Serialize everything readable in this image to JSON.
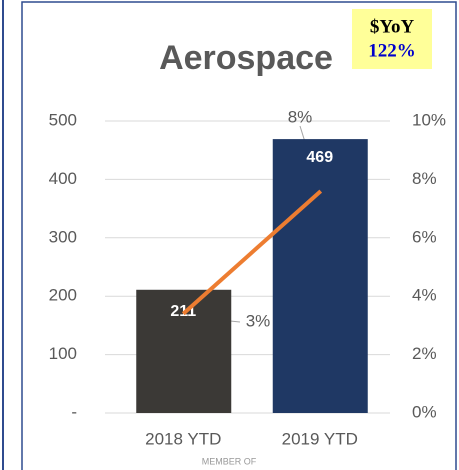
{
  "chart_data": {
    "type": "bar",
    "title": "Aerospace",
    "annotations": [
      "$YoY",
      "122%"
    ],
    "categories": [
      "2018 YTD",
      "2019 YTD"
    ],
    "series": [
      {
        "type": "bar",
        "colors": [
          "#3b3936",
          "#1f3864"
        ],
        "values": [
          211,
          469
        ]
      },
      {
        "type": "line",
        "axis": "y2",
        "color": "#ed7d31",
        "values": [
          3.4,
          7.6
        ],
        "value_labels": [
          "3%",
          "8%"
        ]
      }
    ],
    "ylim": [
      0,
      500
    ],
    "yticks": [
      {
        "value": 0,
        "label": "-"
      },
      100,
      200,
      300,
      400,
      500
    ],
    "y2lim": [
      0,
      10
    ],
    "y2ticks": [
      {
        "value": 0,
        "label": "0%"
      },
      {
        "value": 2,
        "label": "2%"
      },
      {
        "value": 4,
        "label": "4%"
      },
      {
        "value": 6,
        "label": "6%"
      },
      {
        "value": 8,
        "label": "8%"
      },
      {
        "value": 10,
        "label": "10%"
      }
    ],
    "grid": true,
    "footer": "MEMBER OF"
  }
}
